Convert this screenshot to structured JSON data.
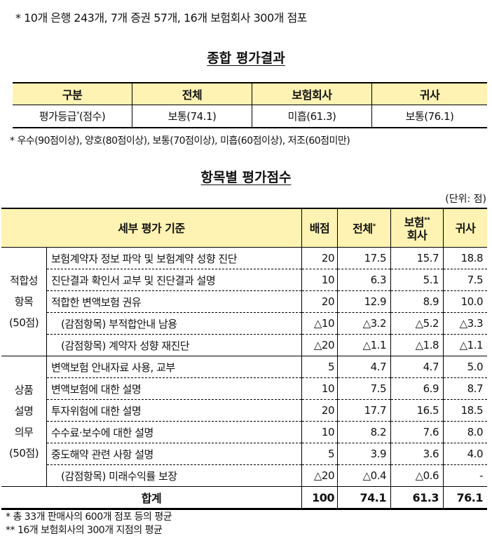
{
  "top_note": "* 10개 은행 243개, 7개 증권 57개, 16개 보험회사 300개 점포",
  "summary": {
    "title": "종합 평가결과",
    "headers": [
      "구분",
      "전체",
      "보험회사",
      "귀사"
    ],
    "row_label": "평가등급",
    "row_label_sup": "*",
    "row_label_suffix": "(점수)",
    "values": [
      "보통(74.1)",
      "미흡(61.3)",
      "보통(76.1)"
    ],
    "footnote": "* 우수(90점이상), 양호(80점이상), 보통(70점이상), 미흡(60점이상), 저조(60점미만)"
  },
  "detail": {
    "title": "항목별 평가점수",
    "unit": "(단위: 점)",
    "headers": {
      "criteria": "세부 평가 기준",
      "points": "배점",
      "total": "전체",
      "total_sup": "*",
      "insurer_line1": "보험",
      "insurer_sup": "**",
      "insurer_line2": "회사",
      "yours": "귀사"
    },
    "groups": [
      {
        "label_lines": [
          "적합성",
          "항목",
          "(50점)"
        ],
        "rows": [
          {
            "criteria": "보험계약자 정보 파악 및 보험계약 성향 진단",
            "points": "20",
            "total": "17.5",
            "insurer": "15.7",
            "yours": "18.8"
          },
          {
            "criteria": "진단결과 확인서 교부 및 진단결과 설명",
            "points": "10",
            "total": "6.3",
            "insurer": "5.1",
            "yours": "7.5"
          },
          {
            "criteria": "적합한 변액보험 권유",
            "points": "20",
            "total": "12.9",
            "insurer": "8.9",
            "yours": "10.0"
          },
          {
            "criteria": "(감점항목) 부적합안내 남용",
            "points": "△10",
            "total": "△3.2",
            "insurer": "△5.2",
            "yours": "△3.3",
            "deduction": true
          },
          {
            "criteria": "(감점항목) 계약자 성향  재진단",
            "points": "△20",
            "total": "△1.1",
            "insurer": "△1.8",
            "yours": "△1.1",
            "deduction": true
          }
        ]
      },
      {
        "label_lines": [
          "상품",
          "설명",
          "의무",
          "(50점)"
        ],
        "rows": [
          {
            "criteria": "변액보험 안내자료 사용, 교부",
            "points": "5",
            "total": "4.7",
            "insurer": "4.7",
            "yours": "5.0"
          },
          {
            "criteria": "변액보험에 대한 설명",
            "points": "10",
            "total": "7.5",
            "insurer": "6.9",
            "yours": "8.7"
          },
          {
            "criteria": "투자위험에 대한 설명",
            "points": "20",
            "total": "17.7",
            "insurer": "16.5",
            "yours": "18.5"
          },
          {
            "criteria": "수수료·보수에 대한 설명",
            "points": "10",
            "total": "8.2",
            "insurer": "7.6",
            "yours": "8.0"
          },
          {
            "criteria": "중도해약 관련 사항 설명",
            "points": "5",
            "total": "3.9",
            "insurer": "3.6",
            "yours": "4.0"
          },
          {
            "criteria": "(감점항목) 미래수익률 보장",
            "points": "△20",
            "total": "△0.4",
            "insurer": "△0.6",
            "yours": "-",
            "deduction": true
          }
        ]
      }
    ],
    "total_row": {
      "label": "합계",
      "points": "100",
      "total": "74.1",
      "insurer": "61.3",
      "yours": "76.1"
    },
    "footnotes": [
      "* 총 33개 판매사의 600개 점포 등의 평균",
      "** 16개 보험회사의 300개 지점의 평균"
    ]
  },
  "colors": {
    "header_fill": "#FFF3B3"
  }
}
